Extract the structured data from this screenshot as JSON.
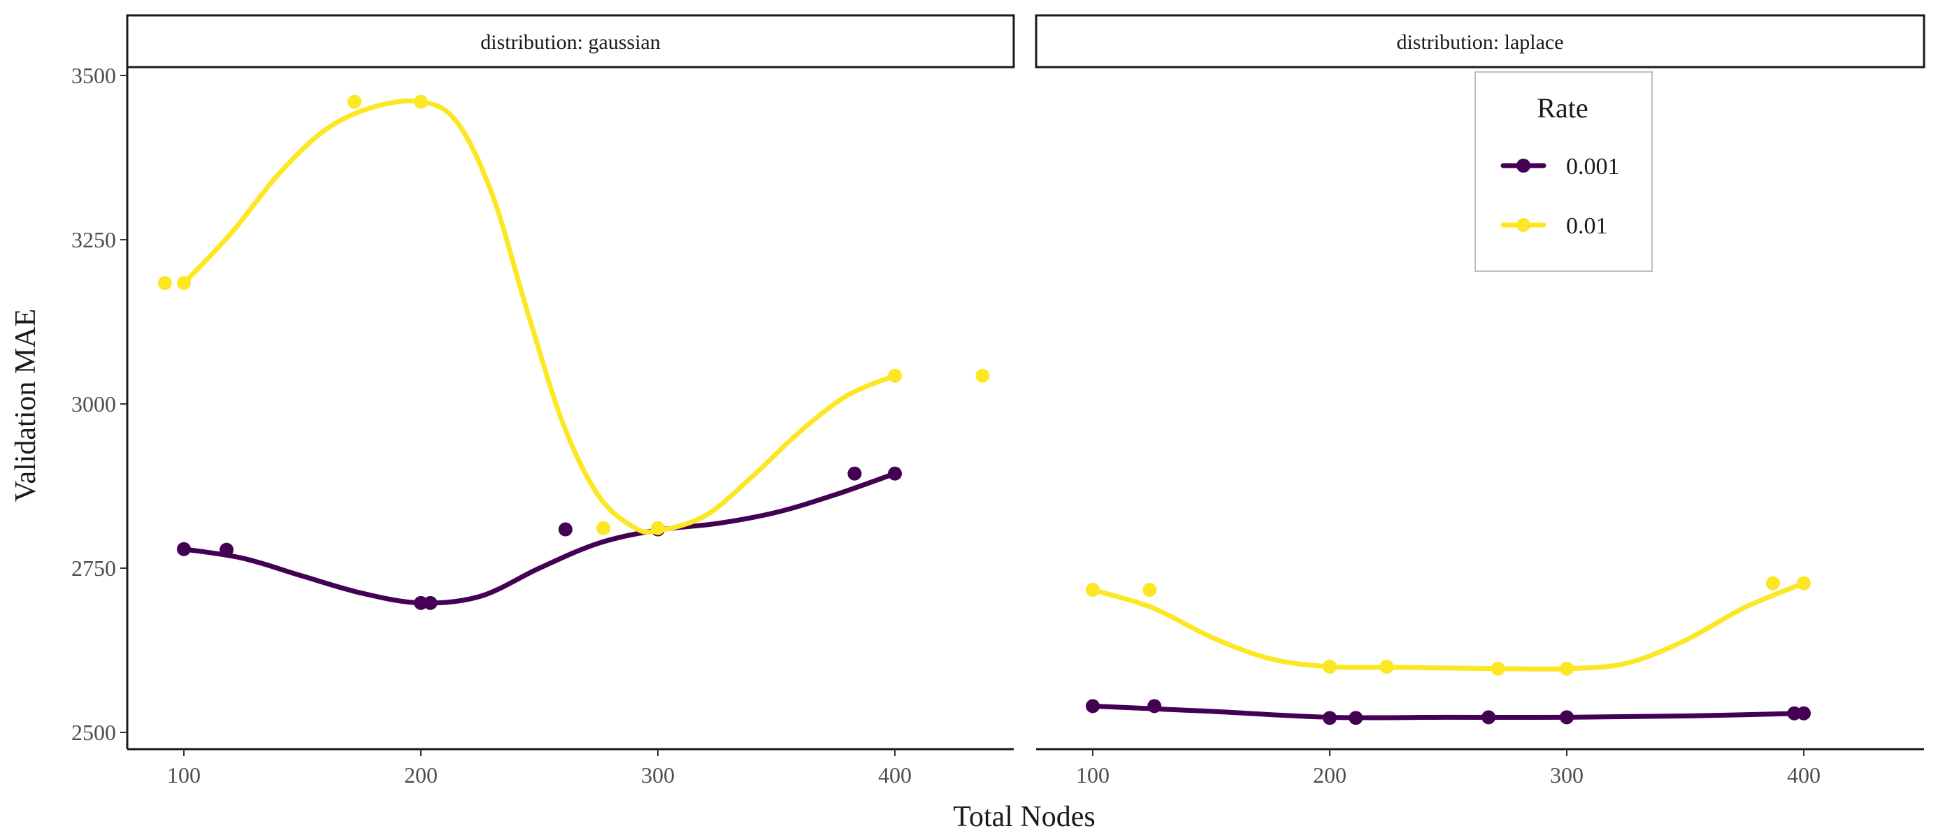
{
  "chart_data": {
    "type": "scatter",
    "facet_label_prefix": "distribution: ",
    "xlabel": "Total Nodes",
    "ylabel": "Validation MAE",
    "x_ticks": [
      100,
      200,
      300,
      400
    ],
    "y_ticks": [
      2500,
      2750,
      3000,
      3250,
      3500
    ],
    "xlim": [
      76,
      450
    ],
    "ylim": [
      2475,
      3510
    ],
    "legend": {
      "title": "Rate",
      "position": "top-right",
      "entries": [
        {
          "label": "0.001",
          "color": "#440154"
        },
        {
          "label": "0.01",
          "color": "#FDE725"
        }
      ]
    },
    "panels": [
      {
        "facet": "gaussian",
        "series": [
          {
            "name": "0.001",
            "color": "#440154",
            "points": [
              [
                100,
                2779
              ],
              [
                118,
                2778
              ],
              [
                200,
                2697
              ],
              [
                204,
                2697
              ],
              [
                261,
                2809
              ],
              [
                300,
                2809
              ],
              [
                383,
                2894
              ],
              [
                400,
                2894
              ]
            ],
            "smooth": [
              [
                100,
                2779
              ],
              [
                125,
                2765
              ],
              [
                150,
                2738
              ],
              [
                175,
                2712
              ],
              [
                200,
                2697
              ],
              [
                225,
                2707
              ],
              [
                250,
                2750
              ],
              [
                275,
                2788
              ],
              [
                300,
                2808
              ],
              [
                325,
                2818
              ],
              [
                350,
                2835
              ],
              [
                375,
                2862
              ],
              [
                400,
                2894
              ]
            ]
          },
          {
            "name": "0.01",
            "color": "#FDE725",
            "points": [
              [
                92,
                3184
              ],
              [
                100,
                3184
              ],
              [
                172,
                3460
              ],
              [
                200,
                3460
              ],
              [
                277,
                2811
              ],
              [
                300,
                2811
              ],
              [
                400,
                3043
              ],
              [
                437,
                3043
              ]
            ],
            "smooth": [
              [
                100,
                3184
              ],
              [
                120,
                3260
              ],
              [
                140,
                3350
              ],
              [
                160,
                3418
              ],
              [
                180,
                3452
              ],
              [
                200,
                3460
              ],
              [
                215,
                3430
              ],
              [
                230,
                3320
              ],
              [
                245,
                3140
              ],
              [
                260,
                2970
              ],
              [
                275,
                2860
              ],
              [
                290,
                2812
              ],
              [
                300,
                2807
              ],
              [
                320,
                2830
              ],
              [
                340,
                2890
              ],
              [
                360,
                2958
              ],
              [
                380,
                3013
              ],
              [
                400,
                3043
              ]
            ]
          }
        ]
      },
      {
        "facet": "laplace",
        "series": [
          {
            "name": "0.001",
            "color": "#440154",
            "points": [
              [
                100,
                2540
              ],
              [
                126,
                2540
              ],
              [
                200,
                2522
              ],
              [
                211,
                2522
              ],
              [
                267,
                2523
              ],
              [
                300,
                2523
              ],
              [
                396,
                2529
              ],
              [
                400,
                2529
              ]
            ],
            "smooth": [
              [
                100,
                2540
              ],
              [
                150,
                2532
              ],
              [
                200,
                2523
              ],
              [
                250,
                2523
              ],
              [
                300,
                2523
              ],
              [
                350,
                2525
              ],
              [
                400,
                2529
              ]
            ]
          },
          {
            "name": "0.01",
            "color": "#FDE725",
            "points": [
              [
                100,
                2717
              ],
              [
                124,
                2717
              ],
              [
                200,
                2600
              ],
              [
                224,
                2600
              ],
              [
                271,
                2597
              ],
              [
                300,
                2597
              ],
              [
                387,
                2727
              ],
              [
                400,
                2727
              ]
            ],
            "smooth": [
              [
                100,
                2717
              ],
              [
                125,
                2690
              ],
              [
                150,
                2645
              ],
              [
                175,
                2612
              ],
              [
                200,
                2600
              ],
              [
                225,
                2599
              ],
              [
                250,
                2598
              ],
              [
                275,
                2597
              ],
              [
                300,
                2597
              ],
              [
                325,
                2605
              ],
              [
                350,
                2640
              ],
              [
                375,
                2690
              ],
              [
                400,
                2727
              ]
            ]
          }
        ]
      }
    ]
  }
}
